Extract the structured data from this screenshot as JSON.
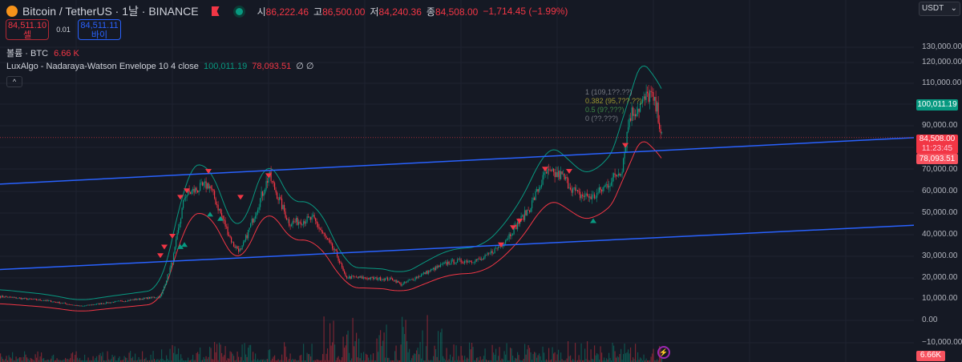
{
  "header": {
    "symbol": "Bitcoin / TetherUS · 1날 · BINANCE",
    "open_label": "시",
    "open": "86,222.46",
    "high_label": "고",
    "high": "86,500.00",
    "low_label": "저",
    "low": "84,240.36",
    "close_label": "종",
    "close": "84,508.00",
    "change": "−1,714.45 (−1.99%)"
  },
  "quote": {
    "sell_price": "84,511.10",
    "sell_label": "셀",
    "spread": "0.01",
    "buy_price": "84,511.11",
    "buy_label": "바이"
  },
  "legend": {
    "volume_label": "볼륨 · BTC",
    "volume_value": "6.66 K",
    "indicator_label": "LuxAlgo - Nadaraya-Watson Envelope 10 4 close",
    "upper": "100,011.19",
    "lower": "78,093.51",
    "extra": "∅ ∅",
    "collapse": "^"
  },
  "currency": "USDT",
  "axis": {
    "ticks": [
      "130,000.00",
      "120,000.00",
      "110,000.00",
      "90,000.00",
      "70,000.00",
      "60,000.00",
      "50,000.00",
      "40,000.00",
      "30,000.00",
      "20,000.00",
      "10,000.00",
      "0.00",
      "−10,000.00"
    ],
    "upper_tag": "100,011.19",
    "price_tag": "84,508.00",
    "countdown": "11:23:45",
    "lower_tag": "78,093.51",
    "volume_tag": "6.66K"
  },
  "fib_labels": [
    "1 (109,1??.??)",
    "0.382 (95,7??.??)",
    "0.5 (9?,???)",
    "0 (??,???)"
  ],
  "colors": {
    "bg": "#151924",
    "up": "#089981",
    "down": "#f23645",
    "trendline": "#2962ff",
    "accent": "#9c27b0"
  },
  "chart_data": {
    "type": "candlestick",
    "ylim": [
      -12000,
      135000
    ],
    "close_path": [
      [
        0,
        11000
      ],
      [
        60,
        9000
      ],
      [
        100,
        6500
      ],
      [
        130,
        8000
      ],
      [
        200,
        11000
      ],
      [
        215,
        28000
      ],
      [
        230,
        58000
      ],
      [
        260,
        63000
      ],
      [
        290,
        35000
      ],
      [
        300,
        32000
      ],
      [
        335,
        67000
      ],
      [
        360,
        45000
      ],
      [
        390,
        47000
      ],
      [
        420,
        30000
      ],
      [
        430,
        20000
      ],
      [
        490,
        19000
      ],
      [
        500,
        16500
      ],
      [
        530,
        22000
      ],
      [
        560,
        27000
      ],
      [
        600,
        28000
      ],
      [
        625,
        35000
      ],
      [
        640,
        42000
      ],
      [
        660,
        52000
      ],
      [
        680,
        68000
      ],
      [
        700,
        67000
      ],
      [
        720,
        58000
      ],
      [
        740,
        57000
      ],
      [
        760,
        64000
      ],
      [
        775,
        70000
      ],
      [
        785,
        95000
      ],
      [
        800,
        100000
      ],
      [
        810,
        105000
      ],
      [
        820,
        96000
      ],
      [
        825,
        84508
      ]
    ],
    "envelope": {
      "upper_last": 100011.19,
      "lower_last": 78093.51
    },
    "trendlines": [
      {
        "from": [
          0,
          63000
        ],
        "to": [
          1140,
          84500
        ]
      },
      {
        "from": [
          0,
          23500
        ],
        "to": [
          1140,
          44000
        ]
      }
    ],
    "last_price": 84508
  }
}
